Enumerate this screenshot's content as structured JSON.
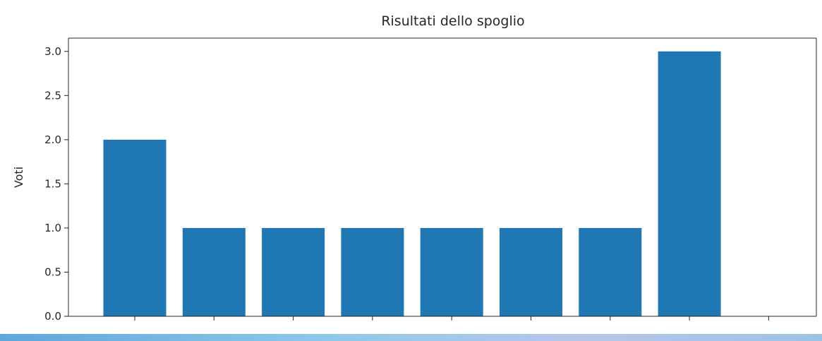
{
  "chart_data": {
    "type": "bar",
    "title": "Risultati dello spoglio",
    "xlabel": "",
    "ylabel": "Voti",
    "categories": [
      "",
      "",
      "",
      "",
      "",
      "",
      "",
      "",
      ""
    ],
    "values": [
      2,
      1,
      1,
      1,
      1,
      1,
      1,
      3,
      0
    ],
    "ylim": [
      0,
      3.15
    ],
    "yticks": [
      "0.0",
      "0.5",
      "1.0",
      "1.5",
      "2.0",
      "2.5",
      "3.0"
    ],
    "grid": false,
    "legend": "none",
    "bar_color": "#1f77b4"
  }
}
